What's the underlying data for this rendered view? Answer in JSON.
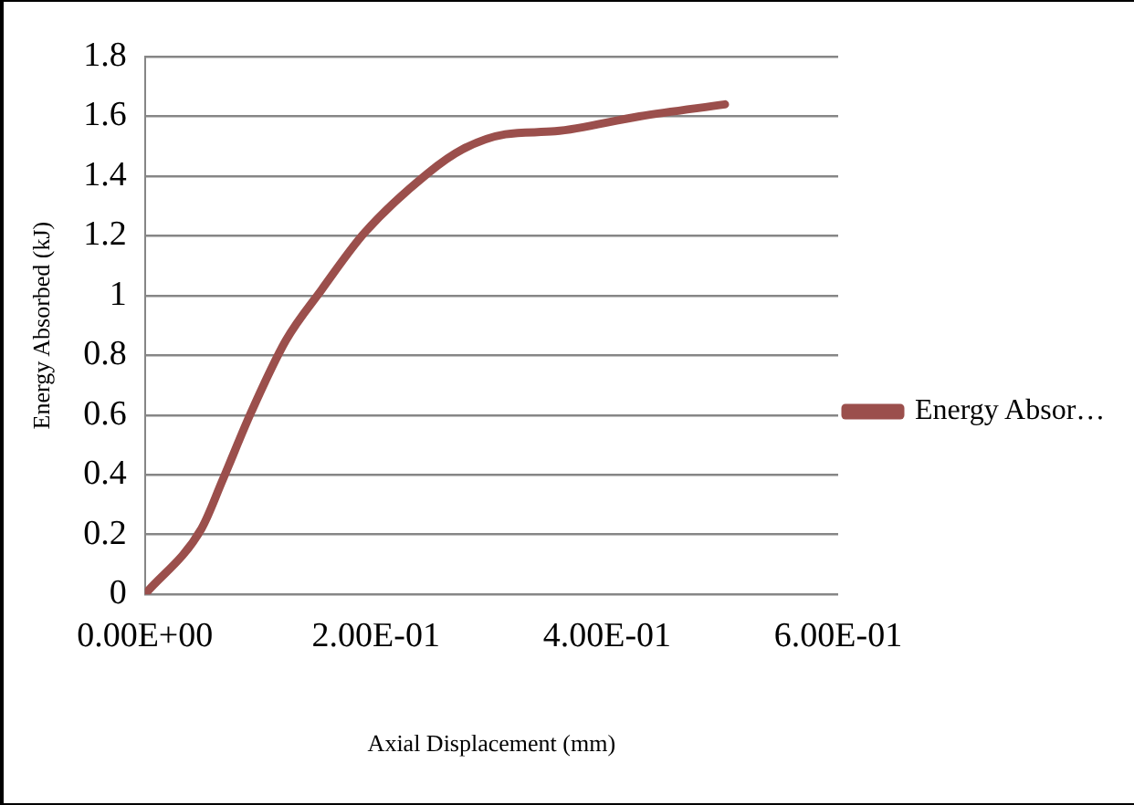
{
  "chart_data": {
    "type": "line",
    "xlabel": "Axial Displacement (mm)",
    "ylabel": "Energy Absorbed (kJ)",
    "x": [
      0,
      0.049,
      0.067,
      0.092,
      0.122,
      0.153,
      0.19,
      0.245,
      0.275,
      0.312,
      0.355,
      0.428,
      0.502
    ],
    "series": [
      {
        "name": "Energy Absor…",
        "color": "#9b4f4c",
        "values": [
          0,
          0.22,
          0.38,
          0.61,
          0.85,
          1.02,
          1.21,
          1.41,
          1.49,
          1.54,
          1.55,
          1.6,
          1.64
        ]
      }
    ],
    "xlim": [
      0,
      0.6
    ],
    "xticks": [
      {
        "value": 0,
        "label": "0.00E+00"
      },
      {
        "value": 0.2,
        "label": "2.00E-01"
      },
      {
        "value": 0.4,
        "label": "4.00E-01"
      },
      {
        "value": 0.6,
        "label": "6.00E-01"
      }
    ],
    "ylim": [
      0,
      1.8
    ],
    "yticks": [
      0,
      0.2,
      0.4,
      0.6,
      0.8,
      1,
      1.2,
      1.4,
      1.6,
      1.8
    ],
    "grid": "y",
    "legend": "right",
    "marker": "none",
    "line_style": "solid"
  }
}
